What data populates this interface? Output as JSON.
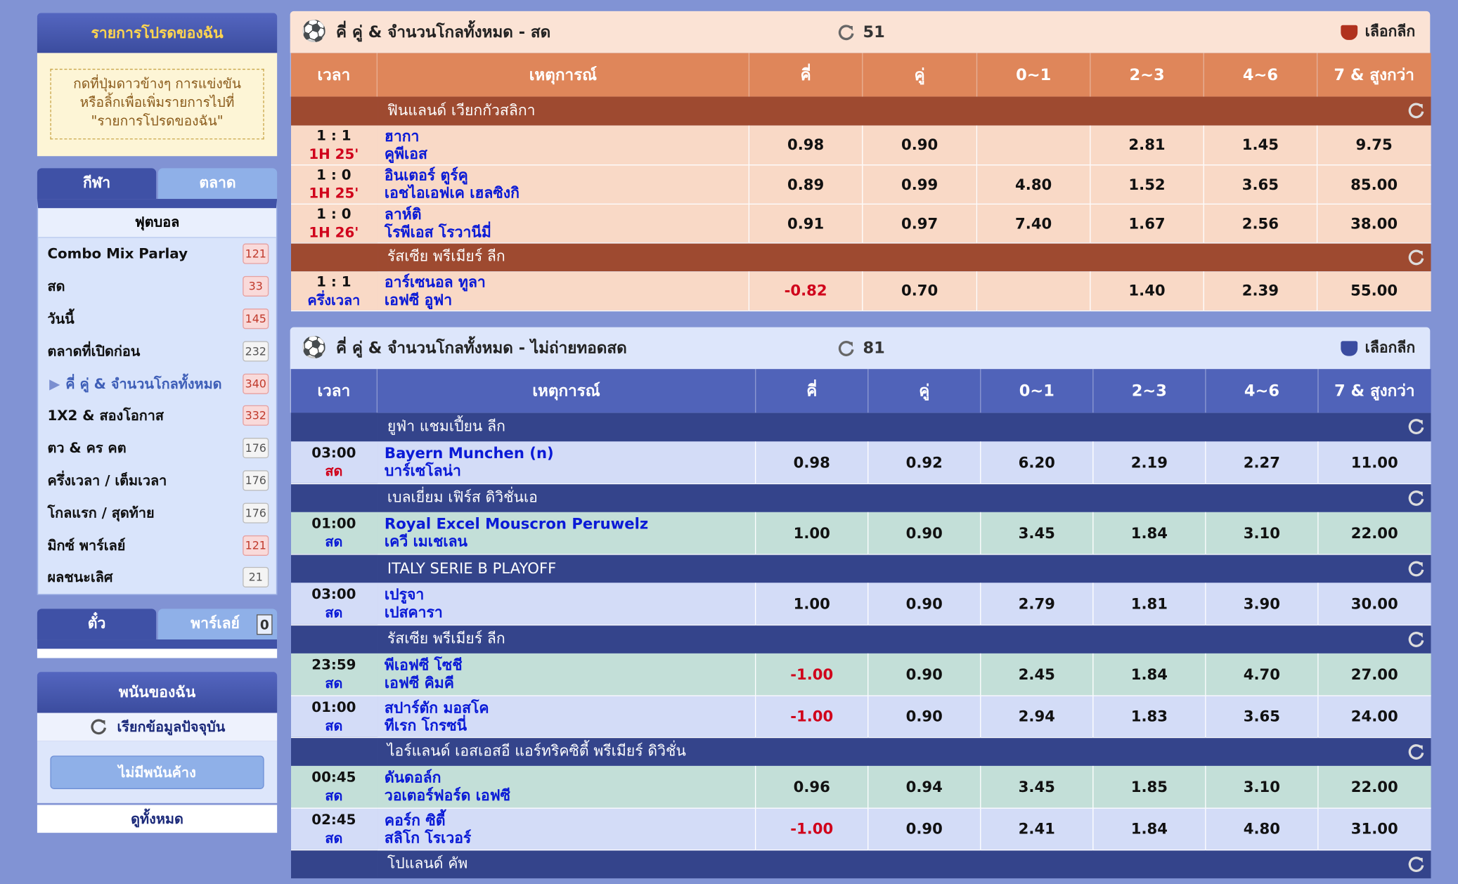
{
  "favorites": {
    "title": "รายการโปรดของฉัน",
    "hint": [
      "กดที่ปุ่มดาวข้างๆ การแข่งขัน",
      "หรือลิ้กเพื่อเพิ่มรายการไปที่",
      "\"รายการโปรดของฉัน\""
    ]
  },
  "sport_tabs": [
    "กีฬา",
    "ตลาด"
  ],
  "sport": "ฟุตบอล",
  "menu": [
    {
      "label": "Combo Mix Parlay",
      "count": 121,
      "highlight": true
    },
    {
      "label": "สด",
      "count": 33,
      "highlight": true
    },
    {
      "label": "วันนี้",
      "count": 145,
      "highlight": true
    },
    {
      "label": "ตลาดที่เปิดก่อน",
      "count": 232,
      "highlight": false
    },
    {
      "label": "คี่ คู่ & จำนวนโกลทั้งหมด",
      "count": 340,
      "highlight": true,
      "active": true
    },
    {
      "label": "1X2 & สองโอกาส",
      "count": 332,
      "highlight": true
    },
    {
      "label": "ตว & คร คต",
      "count": 176,
      "highlight": false
    },
    {
      "label": "ครึ่งเวลา / เต็มเวลา",
      "count": 176,
      "highlight": false
    },
    {
      "label": "โกลแรก / สุดท้าย",
      "count": 176,
      "highlight": false
    },
    {
      "label": "มิกซ์ พาร์เลย์",
      "count": 121,
      "highlight": true
    },
    {
      "label": "ผลชนะเลิศ",
      "count": 21,
      "highlight": false
    }
  ],
  "bet_tabs": [
    "ตั๋ว",
    "พาร์เลย์"
  ],
  "parlay_count": 0,
  "my_bets": {
    "title": "พนันของฉัน",
    "refresh": "เรียกข้อมูลปัจจุบัน",
    "empty": "ไม่มีพนันค้าง",
    "view_all": "ดูทั้งหมด"
  },
  "sections": [
    {
      "title": "คี่ คู่ & จำนวนโกลทั้งหมด - สด",
      "count": 51,
      "select": "เลือกลีก",
      "theme": "live",
      "headers": [
        "เวลา",
        "เหตุการณ์",
        "คี่",
        "คู่",
        "0~1",
        "2~3",
        "4~6",
        "7 & สูงกว่า"
      ],
      "leagues": [
        {
          "name": "ฟินแลนด์ เวียกกัวสลิกา",
          "matches": [
            {
              "time": "1 : 1",
              "status": "1H 25'",
              "status_color": "red",
              "home": "ฮากา",
              "away": "คูพีเอส",
              "odds": [
                "0.98",
                "0.90",
                null,
                "2.81",
                "1.45",
                "9.75"
              ]
            },
            {
              "time": "1 : 0",
              "status": "1H 25'",
              "status_color": "red",
              "home": "อินเตอร์ ตูร์คู",
              "away": "เอชไอเอฟเค เฮลซิงกิ",
              "odds": [
                "0.89",
                "0.99",
                "4.80",
                "1.52",
                "3.65",
                "85.00"
              ]
            },
            {
              "time": "1 : 0",
              "status": "1H 26'",
              "status_color": "red",
              "home": "ลาห์ติ",
              "away": "โรพีเอส โรวานีมี่",
              "odds": [
                "0.91",
                "0.97",
                "7.40",
                "1.67",
                "2.56",
                "38.00"
              ]
            }
          ]
        },
        {
          "name": "รัสเซีย พรีเมียร์ ลีก",
          "matches": [
            {
              "time": "1 : 1",
              "status": "ครึ่งเวลา",
              "status_color": "blue",
              "home": "อาร์เซนอล ทูลา",
              "away": "เอฟซี อูฟา",
              "odds": [
                "-0.82",
                "0.70",
                null,
                "1.40",
                "2.39",
                "55.00"
              ]
            }
          ]
        }
      ]
    },
    {
      "title": "คี่ คู่ & จำนวนโกลทั้งหมด - ไม่ถ่ายทอดสด",
      "count": 81,
      "select": "เลือกลีก",
      "theme": "prematch",
      "headers": [
        "เวลา",
        "เหตุการณ์",
        "คี่",
        "คู่",
        "0~1",
        "2~3",
        "4~6",
        "7 & สูงกว่า"
      ],
      "leagues": [
        {
          "name": "ยูฟ่า แชมเปี้ยน ลีก",
          "matches": [
            {
              "time": "03:00",
              "status": "สด",
              "status_color": "red",
              "home": "Bayern Munchen (n)",
              "away": "บาร์เซโลน่า",
              "odds": [
                "0.98",
                "0.92",
                "6.20",
                "2.19",
                "2.27",
                "11.00"
              ]
            }
          ]
        },
        {
          "name": "เบลเยี่ยม เฟิร์ส ดิวิชั่นเอ",
          "matches": [
            {
              "time": "01:00",
              "status": "สด",
              "status_color": "blue",
              "home": "Royal Excel Mouscron Peruwelz",
              "away": "เควี เมเชเลน",
              "odds": [
                "1.00",
                "0.90",
                "3.45",
                "1.84",
                "3.10",
                "22.00"
              ]
            }
          ]
        },
        {
          "name": "ITALY SERIE B PLAYOFF",
          "matches": [
            {
              "time": "03:00",
              "status": "สด",
              "status_color": "blue",
              "home": "เปรูจา",
              "away": "เปสคารา",
              "odds": [
                "1.00",
                "0.90",
                "2.79",
                "1.81",
                "3.90",
                "30.00"
              ]
            }
          ]
        },
        {
          "name": "รัสเซีย พรีเมียร์ ลีก",
          "matches": [
            {
              "time": "23:59",
              "status": "สด",
              "status_color": "blue",
              "home": "พีเอฟซี โซชี",
              "away": "เอฟซี คิมคี",
              "odds": [
                "-1.00",
                "0.90",
                "2.45",
                "1.84",
                "4.70",
                "27.00"
              ]
            },
            {
              "time": "01:00",
              "status": "สด",
              "status_color": "blue",
              "home": "สปาร์ตัก มอสโค",
              "away": "ทีเรก โกรซนี่",
              "odds": [
                "-1.00",
                "0.90",
                "2.94",
                "1.83",
                "3.65",
                "24.00"
              ]
            }
          ]
        },
        {
          "name": "ไอร์แลนด์ เอสเอสอี แอร์ทริคซิตี้ พรีเมียร์ ดิวิชั่น",
          "matches": [
            {
              "time": "00:45",
              "status": "สด",
              "status_color": "blue",
              "home": "ดันดอล์ก",
              "away": "วอเตอร์ฟอร์ด เอฟซี",
              "odds": [
                "0.96",
                "0.94",
                "3.45",
                "1.85",
                "3.10",
                "22.00"
              ]
            },
            {
              "time": "02:45",
              "status": "สด",
              "status_color": "blue",
              "home": "คอร์ก ซิตี้",
              "away": "สลิโก โรเวอร์",
              "odds": [
                "-1.00",
                "0.90",
                "2.41",
                "1.84",
                "4.80",
                "31.00"
              ]
            }
          ]
        },
        {
          "name": "โปแลนด์ คัพ",
          "matches": []
        }
      ]
    }
  ]
}
